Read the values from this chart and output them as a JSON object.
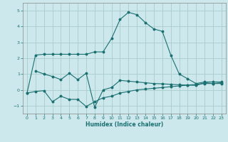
{
  "title": "",
  "xlabel": "Humidex (Indice chaleur)",
  "bg_color": "#cce8ec",
  "grid_color": "#aacccc",
  "line_color": "#1a7070",
  "xlim": [
    -0.5,
    23.5
  ],
  "ylim": [
    -1.5,
    5.5
  ],
  "yticks": [
    -1,
    0,
    1,
    2,
    3,
    4,
    5
  ],
  "xticks": [
    0,
    1,
    2,
    3,
    4,
    5,
    6,
    7,
    8,
    9,
    10,
    11,
    12,
    13,
    14,
    15,
    16,
    17,
    18,
    19,
    20,
    21,
    22,
    23
  ],
  "line1": {
    "x": [
      0,
      1,
      2,
      3,
      4,
      5,
      6,
      7,
      8,
      9,
      10,
      11,
      12,
      13,
      14,
      15,
      16,
      17,
      18,
      19,
      20,
      21,
      22,
      23
    ],
    "y": [
      -0.2,
      2.2,
      2.25,
      2.25,
      2.25,
      2.25,
      2.25,
      2.25,
      2.4,
      2.4,
      3.25,
      4.45,
      4.9,
      4.75,
      4.25,
      3.85,
      3.7,
      2.2,
      1.0,
      0.7,
      0.4,
      0.5,
      0.5,
      0.5
    ]
  },
  "line2": {
    "x": [
      1,
      2,
      3,
      4,
      5,
      6,
      7,
      8,
      9,
      10,
      11,
      12,
      13,
      14,
      15,
      16,
      17,
      18,
      19,
      20,
      21,
      22,
      23
    ],
    "y": [
      1.2,
      1.0,
      0.85,
      0.65,
      1.05,
      0.65,
      1.05,
      -1.1,
      0.0,
      0.15,
      0.6,
      0.55,
      0.5,
      0.45,
      0.4,
      0.38,
      0.35,
      0.32,
      0.3,
      0.28,
      0.45,
      0.4,
      0.4
    ]
  },
  "line3": {
    "x": [
      0,
      1,
      2,
      3,
      4,
      5,
      6,
      7,
      8,
      9,
      10,
      11,
      12,
      13,
      14,
      15,
      16,
      17,
      18,
      19,
      20,
      21,
      22,
      23
    ],
    "y": [
      -0.2,
      -0.1,
      -0.05,
      -0.75,
      -0.4,
      -0.6,
      -0.6,
      -1.05,
      -0.75,
      -0.5,
      -0.4,
      -0.2,
      -0.1,
      0.0,
      0.05,
      0.1,
      0.15,
      0.2,
      0.25,
      0.3,
      0.35,
      0.4,
      0.4,
      0.45
    ]
  }
}
